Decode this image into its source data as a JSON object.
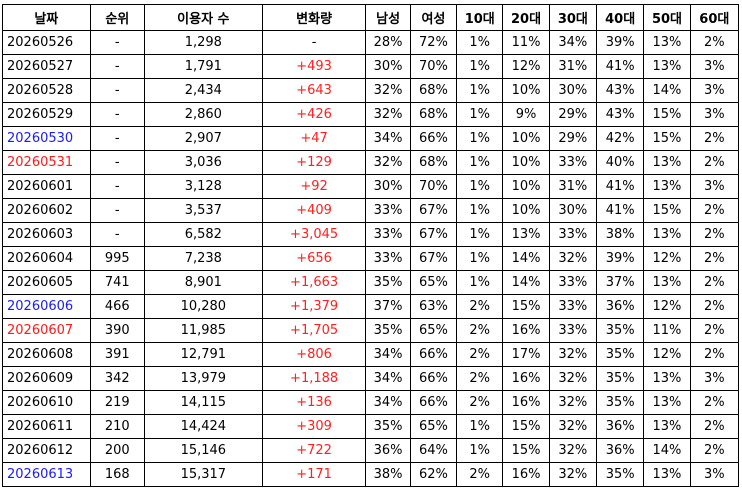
{
  "table": {
    "header": [
      "날짜",
      "순위",
      "이용자 수",
      "변화량",
      "남성",
      "여성",
      "10대",
      "20대",
      "30대",
      "40대",
      "50대",
      "60대"
    ],
    "rows": [
      [
        "20260526",
        "-",
        "1,298",
        "-",
        "28%",
        "72%",
        "1%",
        "11%",
        "34%",
        "39%",
        "13%",
        "2%"
      ],
      [
        "20260527",
        "-",
        "1,791",
        "+493",
        "30%",
        "70%",
        "1%",
        "12%",
        "31%",
        "41%",
        "13%",
        "3%"
      ],
      [
        "20260528",
        "-",
        "2,434",
        "+643",
        "32%",
        "68%",
        "1%",
        "10%",
        "30%",
        "43%",
        "14%",
        "3%"
      ],
      [
        "20260529",
        "-",
        "2,860",
        "+426",
        "32%",
        "68%",
        "1%",
        "9%",
        "29%",
        "43%",
        "15%",
        "3%"
      ],
      [
        "20260530",
        "-",
        "2,907",
        "+47",
        "34%",
        "66%",
        "1%",
        "10%",
        "29%",
        "42%",
        "15%",
        "2%"
      ],
      [
        "20260531",
        "-",
        "3,036",
        "+129",
        "32%",
        "68%",
        "1%",
        "10%",
        "33%",
        "40%",
        "13%",
        "2%"
      ],
      [
        "20260601",
        "-",
        "3,128",
        "+92",
        "30%",
        "70%",
        "1%",
        "10%",
        "31%",
        "41%",
        "13%",
        "3%"
      ],
      [
        "20260602",
        "-",
        "3,537",
        "+409",
        "33%",
        "67%",
        "1%",
        "10%",
        "30%",
        "41%",
        "15%",
        "2%"
      ],
      [
        "20260603",
        "-",
        "6,582",
        "+3,045",
        "33%",
        "67%",
        "1%",
        "13%",
        "33%",
        "38%",
        "13%",
        "2%"
      ],
      [
        "20260604",
        "995",
        "7,238",
        "+656",
        "33%",
        "67%",
        "1%",
        "14%",
        "32%",
        "39%",
        "12%",
        "2%"
      ],
      [
        "20260605",
        "741",
        "8,901",
        "+1,663",
        "35%",
        "65%",
        "1%",
        "14%",
        "33%",
        "37%",
        "13%",
        "2%"
      ],
      [
        "20260606",
        "466",
        "10,280",
        "+1,379",
        "37%",
        "63%",
        "2%",
        "15%",
        "33%",
        "36%",
        "12%",
        "2%"
      ],
      [
        "20260607",
        "390",
        "11,985",
        "+1,705",
        "35%",
        "65%",
        "2%",
        "16%",
        "33%",
        "35%",
        "11%",
        "2%"
      ],
      [
        "20260608",
        "391",
        "12,791",
        "+806",
        "34%",
        "66%",
        "2%",
        "17%",
        "32%",
        "35%",
        "12%",
        "2%"
      ],
      [
        "20260609",
        "342",
        "13,979",
        "+1,188",
        "34%",
        "66%",
        "2%",
        "16%",
        "32%",
        "35%",
        "13%",
        "3%"
      ],
      [
        "20260610",
        "219",
        "14,115",
        "+136",
        "34%",
        "66%",
        "2%",
        "16%",
        "32%",
        "35%",
        "13%",
        "2%"
      ],
      [
        "20260611",
        "210",
        "14,424",
        "+309",
        "35%",
        "65%",
        "1%",
        "15%",
        "32%",
        "36%",
        "13%",
        "2%"
      ],
      [
        "20260612",
        "200",
        "15,146",
        "+722",
        "36%",
        "64%",
        "1%",
        "15%",
        "32%",
        "36%",
        "14%",
        "2%"
      ],
      [
        "20260613",
        "168",
        "15,317",
        "+171",
        "38%",
        "62%",
        "2%",
        "16%",
        "32%",
        "35%",
        "13%",
        "3%"
      ]
    ],
    "date_colors": [
      "#000000",
      "#000000",
      "#000000",
      "#000000",
      "#1a1aff",
      "#ff1a1a",
      "#000000",
      "#000000",
      "#000000",
      "#000000",
      "#000000",
      "#1a1aff",
      "#ff1a1a",
      "#000000",
      "#000000",
      "#000000",
      "#000000",
      "#000000",
      "#1a1aff"
    ],
    "change_colors": [
      "#000000",
      "#ff2020",
      "#ff2020",
      "#ff2020",
      "#ff2020",
      "#ff2020",
      "#ff2020",
      "#ff2020",
      "#ff2020",
      "#ff2020",
      "#ff2020",
      "#ff2020",
      "#ff2020",
      "#ff2020",
      "#ff2020",
      "#ff2020",
      "#ff2020",
      "#ff2020",
      "#ff2020"
    ]
  }
}
